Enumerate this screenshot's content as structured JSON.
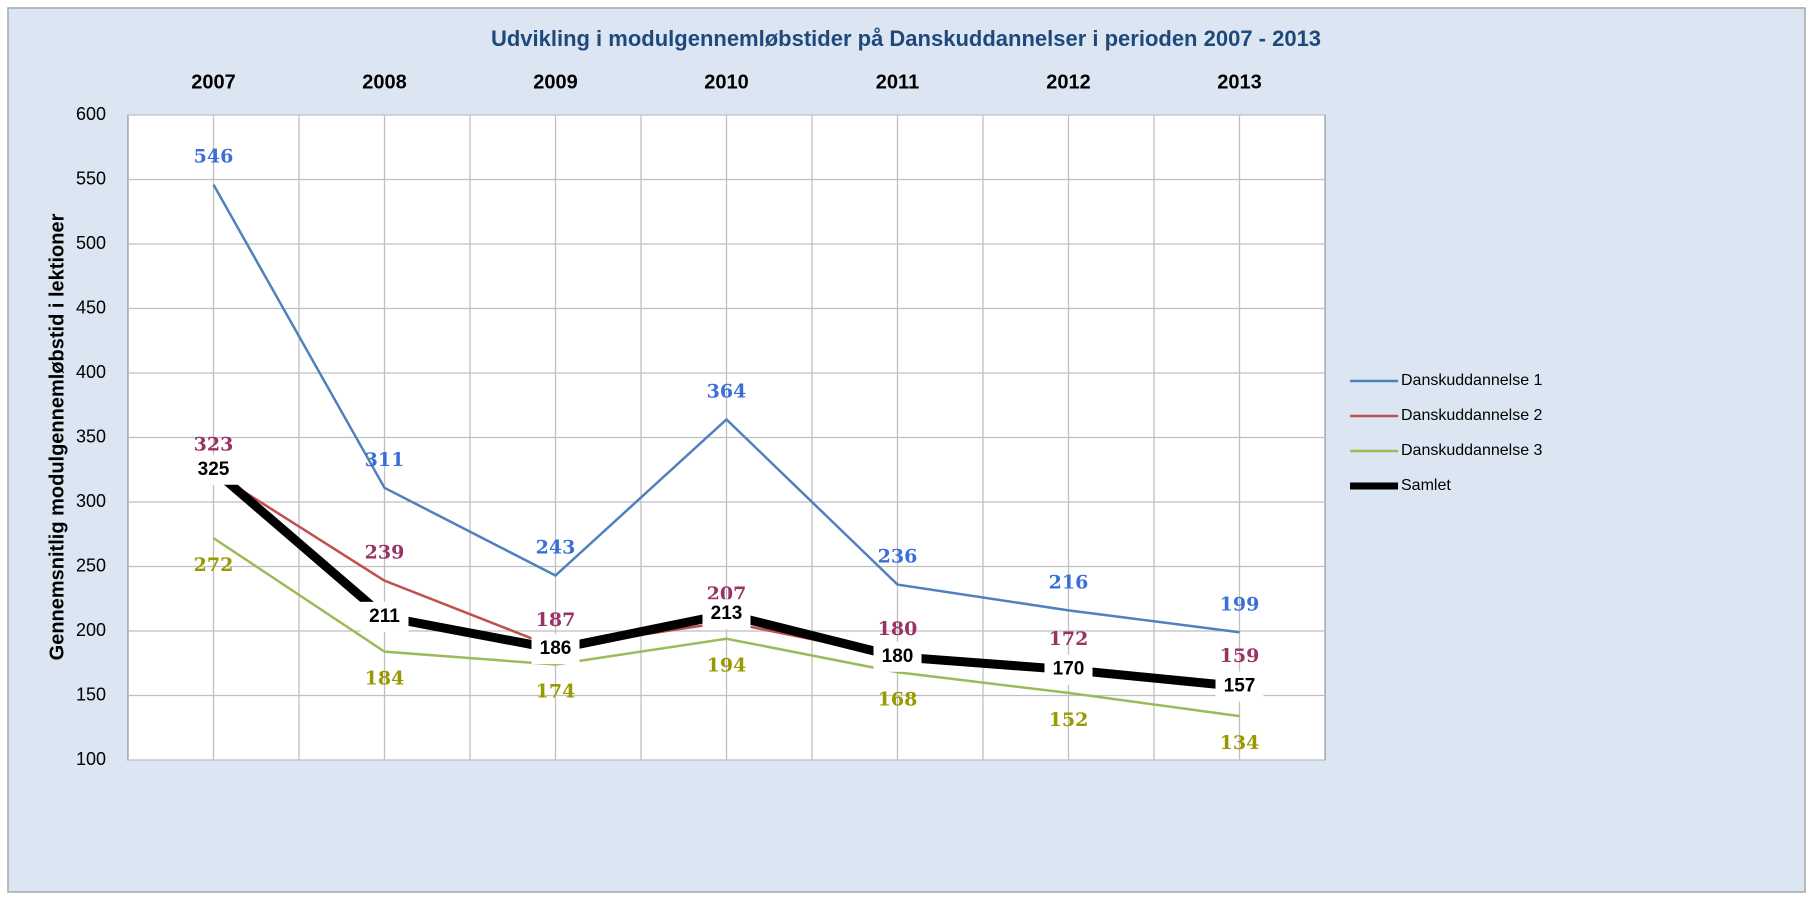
{
  "chart_data": {
    "type": "line",
    "title": "Udvikling i modulgennemløbstider på Danskuddannelser i perioden 2007 - 2013",
    "y_label": "Gennemsnitlig modulgennemløbstid i lektioner",
    "categories": [
      "2007",
      "2008",
      "2009",
      "2010",
      "2011",
      "2012",
      "2013"
    ],
    "series": [
      {
        "name": "Danskuddannelse 1",
        "color": "#4f81bd",
        "label_color": "#3a6fd8",
        "values": [
          546,
          311,
          243,
          364,
          236,
          216,
          199
        ]
      },
      {
        "name": "Danskuddannelse 2",
        "color": "#c0504d",
        "label_color": "#993366",
        "values": [
          323,
          239,
          187,
          207,
          180,
          172,
          159
        ]
      },
      {
        "name": "Danskuddannelse 3",
        "color": "#9bbb59",
        "label_color": "#999900",
        "values": [
          272,
          184,
          174,
          194,
          168,
          152,
          134
        ]
      },
      {
        "name": "Samlet",
        "color": "#000000",
        "label_color": "#000000",
        "values": [
          325,
          211,
          186,
          213,
          180,
          170,
          157
        ]
      }
    ],
    "ylim": [
      100,
      600
    ],
    "yticks": [
      100,
      150,
      200,
      250,
      300,
      350,
      400,
      450,
      500,
      550,
      600
    ],
    "grid": true,
    "legend": "right"
  }
}
